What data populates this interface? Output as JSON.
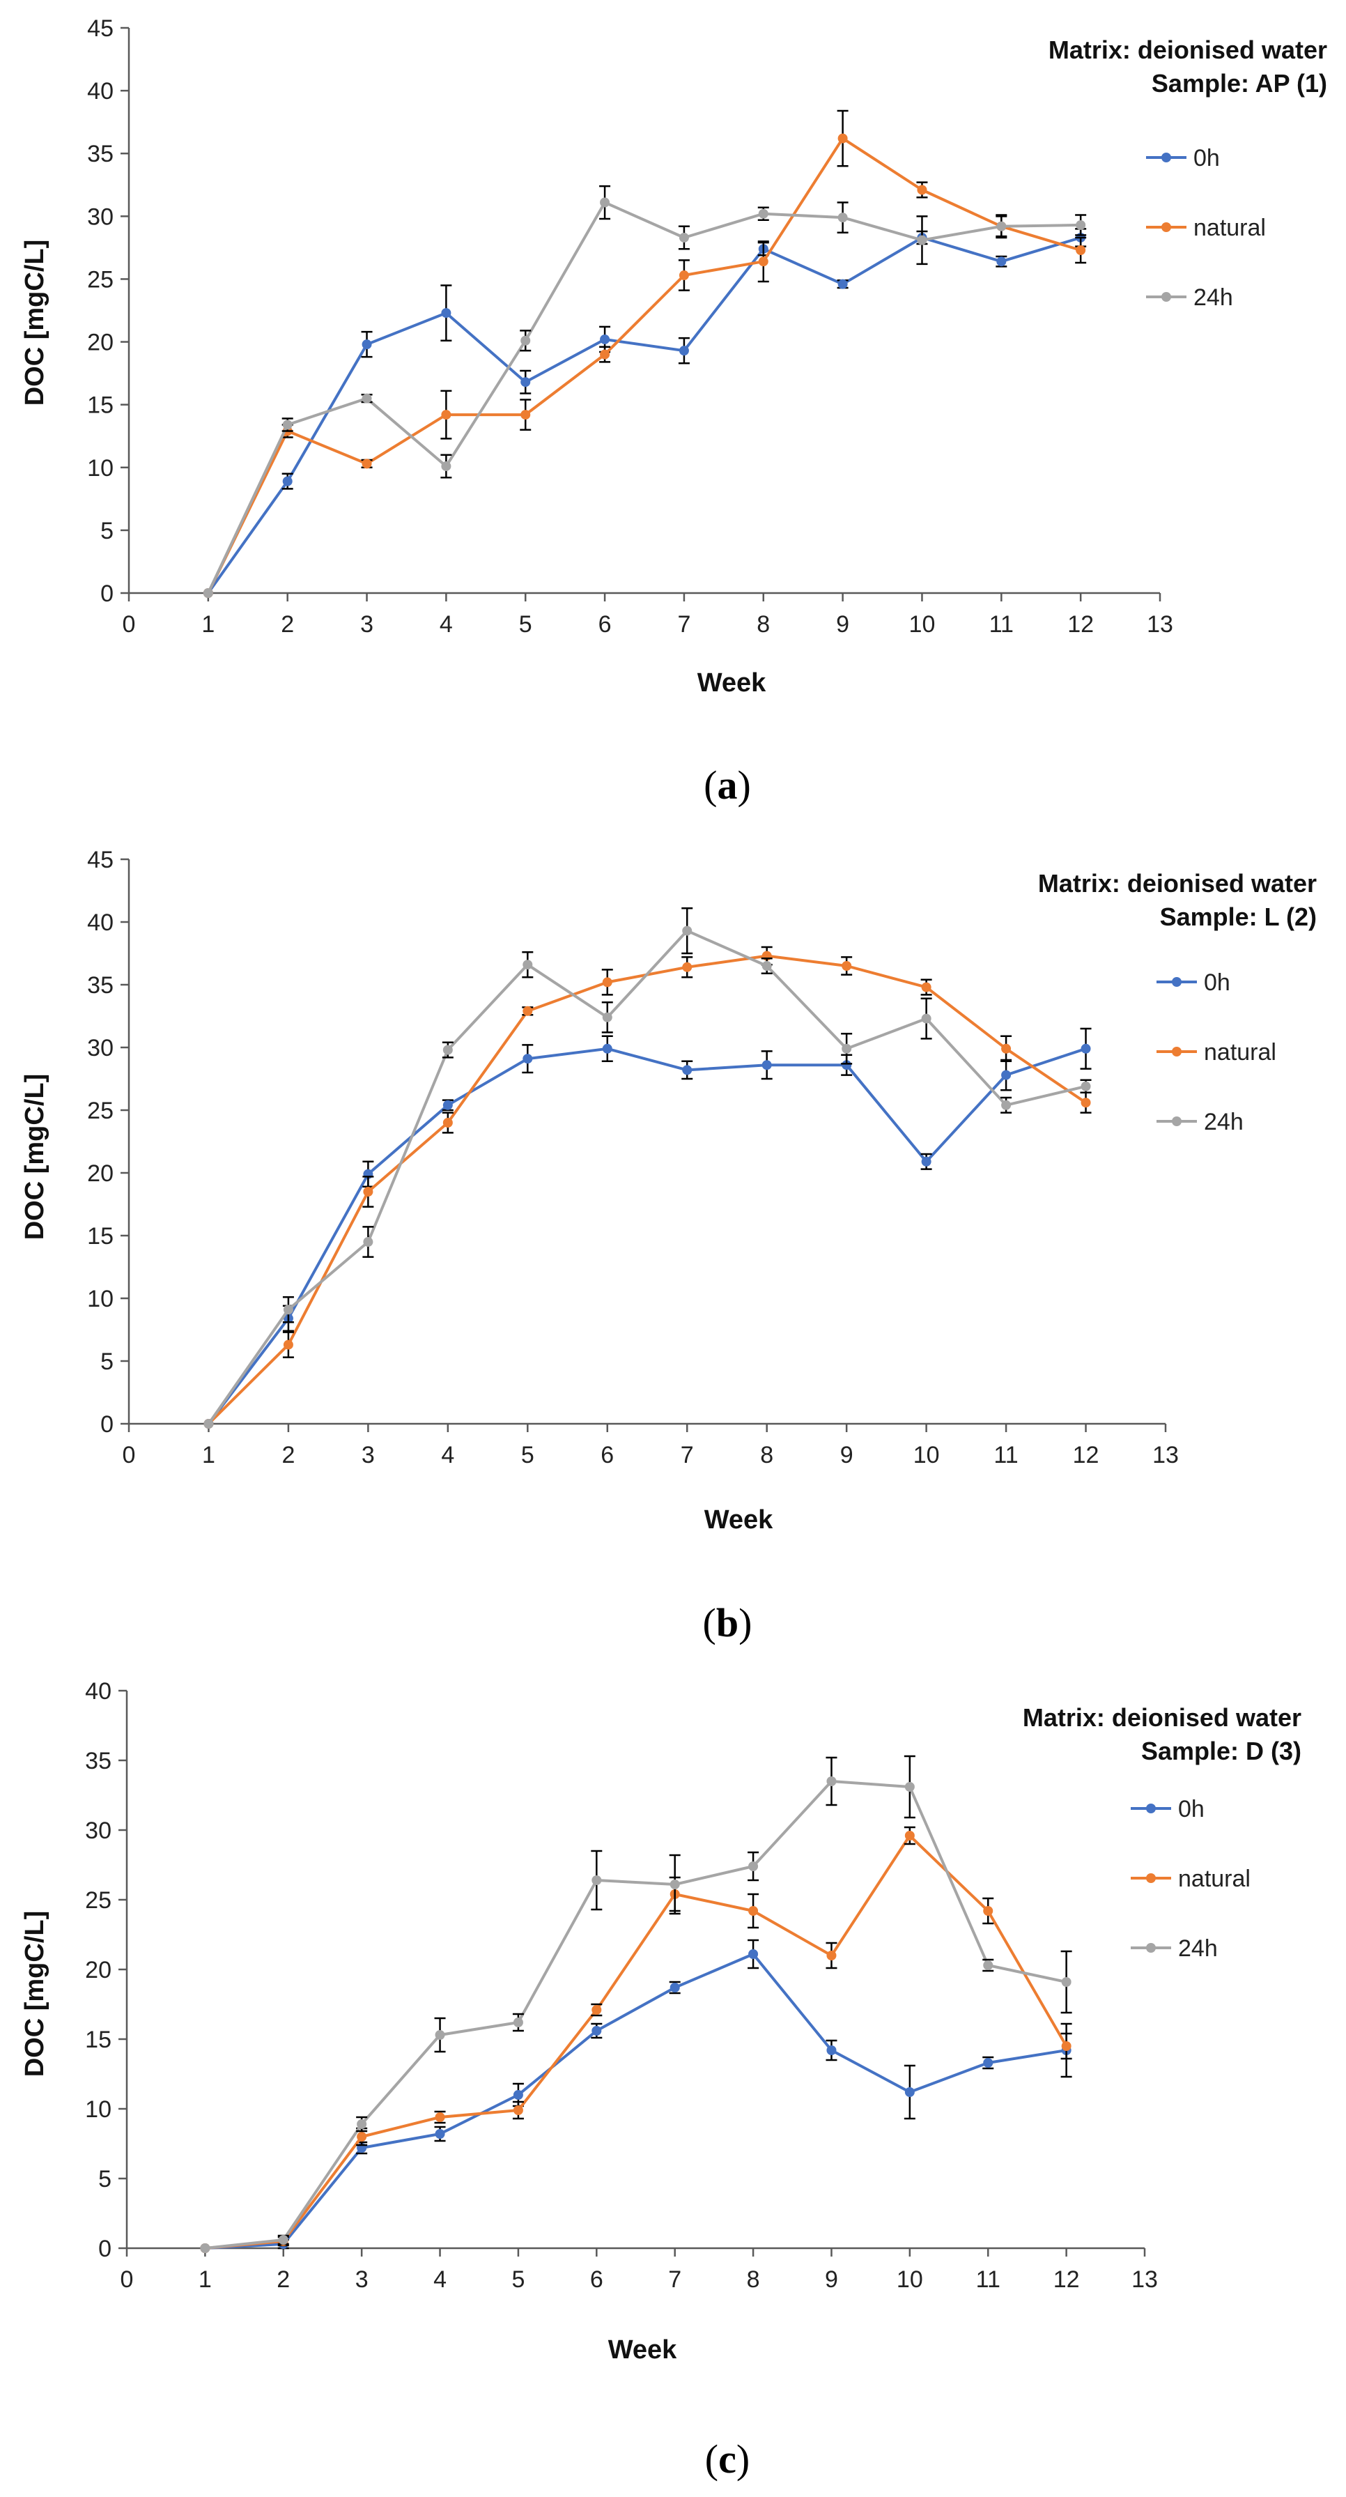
{
  "chart_data": [
    {
      "type": "line",
      "caption_letter": "a",
      "title": "",
      "annotation_line1": "Matrix: deionised water",
      "annotation_line2": "Sample: AP (1)",
      "xlabel": "Week",
      "ylabel": "DOC [mgC/L]",
      "xlim": [
        0,
        13
      ],
      "ylim": [
        0,
        45
      ],
      "xticks": [
        0,
        1,
        2,
        3,
        4,
        5,
        6,
        7,
        8,
        9,
        10,
        11,
        12,
        13
      ],
      "yticks": [
        0,
        5,
        10,
        15,
        20,
        25,
        30,
        35,
        40,
        45
      ],
      "x": [
        1,
        2,
        3,
        4,
        5,
        6,
        7,
        8,
        9,
        10,
        11,
        12
      ],
      "legend_position": "right",
      "series": [
        {
          "name": "0h",
          "color": "#4472C4",
          "values": [
            0,
            8.9,
            19.8,
            22.3,
            16.8,
            20.2,
            19.3,
            27.4,
            24.6,
            28.3,
            26.4,
            28.3
          ],
          "errors": [
            0,
            0.6,
            1.0,
            2.2,
            0.9,
            1.0,
            1.0,
            0.5,
            0.3,
            0.5,
            0.4,
            0.7
          ]
        },
        {
          "name": "natural",
          "color": "#ED7D31",
          "values": [
            0,
            12.9,
            10.3,
            14.2,
            14.2,
            19.0,
            25.3,
            26.4,
            36.2,
            32.1,
            29.2,
            27.3
          ],
          "errors": [
            0,
            0.5,
            0.3,
            1.9,
            1.2,
            0.6,
            1.2,
            1.6,
            2.2,
            0.6,
            0.9,
            1.0
          ]
        },
        {
          "name": "24h",
          "color": "#A5A5A5",
          "values": [
            0,
            13.4,
            15.5,
            10.1,
            20.1,
            31.1,
            28.3,
            30.2,
            29.9,
            28.1,
            29.2,
            29.3
          ],
          "errors": [
            0,
            0.5,
            0.3,
            0.9,
            0.8,
            1.3,
            0.9,
            0.5,
            1.2,
            1.9,
            0.8,
            0.8
          ]
        }
      ]
    },
    {
      "type": "line",
      "caption_letter": "b",
      "title": "",
      "annotation_line1": "Matrix: deionised water",
      "annotation_line2": "Sample: L (2)",
      "xlabel": "Week",
      "ylabel": "DOC [mgC/L]",
      "xlim": [
        0,
        13
      ],
      "ylim": [
        0,
        45
      ],
      "xticks": [
        0,
        1,
        2,
        3,
        4,
        5,
        6,
        7,
        8,
        9,
        10,
        11,
        12,
        13
      ],
      "yticks": [
        0,
        5,
        10,
        15,
        20,
        25,
        30,
        35,
        40,
        45
      ],
      "x": [
        1,
        2,
        3,
        4,
        5,
        6,
        7,
        8,
        9,
        10,
        11,
        12
      ],
      "legend_position": "right",
      "series": [
        {
          "name": "0h",
          "color": "#4472C4",
          "values": [
            0,
            8.4,
            19.9,
            25.4,
            29.1,
            29.9,
            28.2,
            28.6,
            28.6,
            20.9,
            27.8,
            29.9
          ],
          "errors": [
            0,
            1.0,
            1.0,
            0.4,
            1.1,
            1.0,
            0.7,
            1.1,
            0.8,
            0.6,
            1.2,
            1.6
          ]
        },
        {
          "name": "natural",
          "color": "#ED7D31",
          "values": [
            0,
            6.3,
            18.5,
            24.0,
            32.9,
            35.2,
            36.4,
            37.3,
            36.5,
            34.8,
            29.9,
            25.6
          ],
          "errors": [
            0,
            1.0,
            1.2,
            0.8,
            0.3,
            1.0,
            0.8,
            0.7,
            0.7,
            0.6,
            1.0,
            0.8
          ]
        },
        {
          "name": "24h",
          "color": "#A5A5A5",
          "values": [
            0,
            9.1,
            14.5,
            29.8,
            36.6,
            32.4,
            39.3,
            36.5,
            29.9,
            32.3,
            25.4,
            26.9
          ],
          "errors": [
            0,
            1.0,
            1.2,
            0.6,
            1.0,
            1.2,
            1.8,
            0.6,
            1.2,
            1.6,
            0.6,
            0.5
          ]
        }
      ]
    },
    {
      "type": "line",
      "caption_letter": "c",
      "title": "",
      "annotation_line1": "Matrix: deionised water",
      "annotation_line2": "Sample: D (3)",
      "xlabel": "Week",
      "ylabel": "DOC [mgC/L]",
      "xlim": [
        0,
        13
      ],
      "ylim": [
        0,
        40
      ],
      "xticks": [
        0,
        1,
        2,
        3,
        4,
        5,
        6,
        7,
        8,
        9,
        10,
        11,
        12,
        13
      ],
      "yticks": [
        0,
        5,
        10,
        15,
        20,
        25,
        30,
        35,
        40
      ],
      "x": [
        1,
        2,
        3,
        4,
        5,
        6,
        7,
        8,
        9,
        10,
        11,
        12
      ],
      "legend_position": "right",
      "series": [
        {
          "name": "0h",
          "color": "#4472C4",
          "values": [
            0,
            0.3,
            7.2,
            8.2,
            11.0,
            15.6,
            18.7,
            21.1,
            14.2,
            11.2,
            13.3,
            14.2
          ],
          "errors": [
            0,
            0.3,
            0.4,
            0.5,
            0.8,
            0.5,
            0.4,
            1.0,
            0.7,
            1.9,
            0.4,
            1.9
          ]
        },
        {
          "name": "natural",
          "color": "#ED7D31",
          "values": [
            0,
            0.5,
            8.0,
            9.4,
            9.9,
            17.1,
            25.4,
            24.2,
            21.0,
            29.6,
            24.2,
            14.5
          ],
          "errors": [
            0,
            0.3,
            0.6,
            0.4,
            0.6,
            0.4,
            1.2,
            1.2,
            0.9,
            0.6,
            0.9,
            0.9
          ]
        },
        {
          "name": "24h",
          "color": "#A5A5A5",
          "values": [
            0,
            0.6,
            8.9,
            15.3,
            16.2,
            26.4,
            26.1,
            27.4,
            33.5,
            33.1,
            20.3,
            19.1
          ],
          "errors": [
            0,
            0.3,
            0.5,
            1.2,
            0.6,
            2.1,
            2.1,
            1.0,
            1.7,
            2.2,
            0.4,
            2.2
          ]
        }
      ]
    }
  ]
}
